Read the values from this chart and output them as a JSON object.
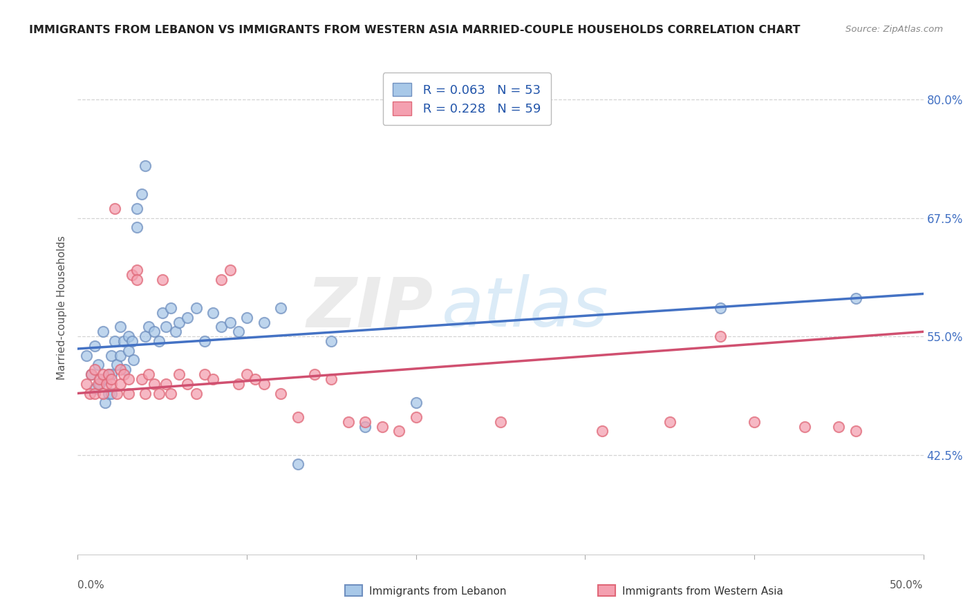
{
  "title": "IMMIGRANTS FROM LEBANON VS IMMIGRANTS FROM WESTERN ASIA MARRIED-COUPLE HOUSEHOLDS CORRELATION CHART",
  "source": "Source: ZipAtlas.com",
  "xlabel_bottom_left": "0.0%",
  "xlabel_bottom_right": "50.0%",
  "xlabel_legend_blue": "Immigrants from Lebanon",
  "xlabel_legend_pink": "Immigrants from Western Asia",
  "ylabel": "Married-couple Households",
  "x_min": 0.0,
  "x_max": 0.5,
  "y_min": 0.32,
  "y_max": 0.84,
  "right_yticks": [
    0.425,
    0.55,
    0.675,
    0.8
  ],
  "right_yticklabels": [
    "42.5%",
    "55.0%",
    "67.5%",
    "80.0%"
  ],
  "blue_color": "#a8c8e8",
  "pink_color": "#f4a0b0",
  "blue_edge_color": "#7090c0",
  "pink_edge_color": "#e06878",
  "blue_line_color": "#4472c4",
  "pink_line_color": "#d05070",
  "watermark_text": "ZIP",
  "watermark_text2": "atlas",
  "legend_blue_R": "0.063",
  "legend_blue_N": "53",
  "legend_pink_R": "0.228",
  "legend_pink_N": "59",
  "blue_R": 0.063,
  "pink_R": 0.228,
  "blue_scatter_x": [
    0.005,
    0.008,
    0.01,
    0.01,
    0.012,
    0.013,
    0.015,
    0.015,
    0.016,
    0.018,
    0.018,
    0.02,
    0.02,
    0.02,
    0.022,
    0.023,
    0.025,
    0.025,
    0.027,
    0.028,
    0.03,
    0.03,
    0.032,
    0.033,
    0.035,
    0.035,
    0.038,
    0.04,
    0.04,
    0.042,
    0.045,
    0.048,
    0.05,
    0.052,
    0.055,
    0.058,
    0.06,
    0.065,
    0.07,
    0.075,
    0.08,
    0.085,
    0.09,
    0.095,
    0.1,
    0.11,
    0.12,
    0.13,
    0.15,
    0.17,
    0.2,
    0.38,
    0.46
  ],
  "blue_scatter_y": [
    0.53,
    0.51,
    0.54,
    0.495,
    0.52,
    0.5,
    0.555,
    0.505,
    0.48,
    0.51,
    0.49,
    0.53,
    0.51,
    0.49,
    0.545,
    0.52,
    0.56,
    0.53,
    0.545,
    0.515,
    0.55,
    0.535,
    0.545,
    0.525,
    0.685,
    0.665,
    0.7,
    0.73,
    0.55,
    0.56,
    0.555,
    0.545,
    0.575,
    0.56,
    0.58,
    0.555,
    0.565,
    0.57,
    0.58,
    0.545,
    0.575,
    0.56,
    0.565,
    0.555,
    0.57,
    0.565,
    0.58,
    0.415,
    0.545,
    0.455,
    0.48,
    0.58,
    0.59
  ],
  "pink_scatter_x": [
    0.005,
    0.007,
    0.008,
    0.01,
    0.01,
    0.012,
    0.013,
    0.015,
    0.015,
    0.017,
    0.018,
    0.02,
    0.02,
    0.022,
    0.023,
    0.025,
    0.025,
    0.027,
    0.03,
    0.03,
    0.032,
    0.035,
    0.035,
    0.038,
    0.04,
    0.042,
    0.045,
    0.048,
    0.05,
    0.052,
    0.055,
    0.06,
    0.065,
    0.07,
    0.075,
    0.08,
    0.085,
    0.09,
    0.095,
    0.1,
    0.105,
    0.11,
    0.12,
    0.13,
    0.14,
    0.15,
    0.16,
    0.17,
    0.18,
    0.19,
    0.2,
    0.25,
    0.31,
    0.35,
    0.38,
    0.4,
    0.43,
    0.45,
    0.46
  ],
  "pink_scatter_y": [
    0.5,
    0.49,
    0.51,
    0.49,
    0.515,
    0.5,
    0.505,
    0.49,
    0.51,
    0.5,
    0.51,
    0.5,
    0.505,
    0.685,
    0.49,
    0.515,
    0.5,
    0.51,
    0.505,
    0.49,
    0.615,
    0.62,
    0.61,
    0.505,
    0.49,
    0.51,
    0.5,
    0.49,
    0.61,
    0.5,
    0.49,
    0.51,
    0.5,
    0.49,
    0.51,
    0.505,
    0.61,
    0.62,
    0.5,
    0.51,
    0.505,
    0.5,
    0.49,
    0.465,
    0.51,
    0.505,
    0.46,
    0.46,
    0.455,
    0.45,
    0.465,
    0.46,
    0.45,
    0.46,
    0.55,
    0.46,
    0.455,
    0.455,
    0.45
  ]
}
